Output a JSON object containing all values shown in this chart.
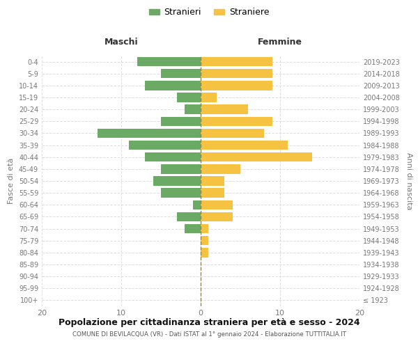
{
  "age_groups": [
    "100+",
    "95-99",
    "90-94",
    "85-89",
    "80-84",
    "75-79",
    "70-74",
    "65-69",
    "60-64",
    "55-59",
    "50-54",
    "45-49",
    "40-44",
    "35-39",
    "30-34",
    "25-29",
    "20-24",
    "15-19",
    "10-14",
    "5-9",
    "0-4"
  ],
  "birth_years": [
    "≤ 1923",
    "1924-1928",
    "1929-1933",
    "1934-1938",
    "1939-1943",
    "1944-1948",
    "1949-1953",
    "1954-1958",
    "1959-1963",
    "1964-1968",
    "1969-1973",
    "1974-1978",
    "1979-1983",
    "1984-1988",
    "1989-1993",
    "1994-1998",
    "1999-2003",
    "2004-2008",
    "2009-2013",
    "2014-2018",
    "2019-2023"
  ],
  "males": [
    0,
    0,
    0,
    0,
    0,
    0,
    2,
    3,
    1,
    5,
    6,
    5,
    7,
    9,
    13,
    5,
    2,
    3,
    7,
    5,
    8
  ],
  "females": [
    0,
    0,
    0,
    0,
    1,
    1,
    1,
    4,
    4,
    3,
    3,
    5,
    14,
    11,
    8,
    9,
    6,
    2,
    9,
    9,
    9
  ],
  "male_color": "#6aaa64",
  "female_color": "#f5c242",
  "title": "Popolazione per cittadinanza straniera per età e sesso - 2024",
  "subtitle": "COMUNE DI BEVILACQUA (VR) - Dati ISTAT al 1° gennaio 2024 - Elaborazione TUTTITALIA.IT",
  "xlabel_left": "Maschi",
  "xlabel_right": "Femmine",
  "ylabel_left": "Fasce di età",
  "ylabel_right": "Anni di nascita",
  "legend_males": "Stranieri",
  "legend_females": "Straniere",
  "xlim": 20,
  "background_color": "#ffffff",
  "grid_color": "#dddddd",
  "axis_text_color": "#777777",
  "dashed_line_color": "#888855"
}
